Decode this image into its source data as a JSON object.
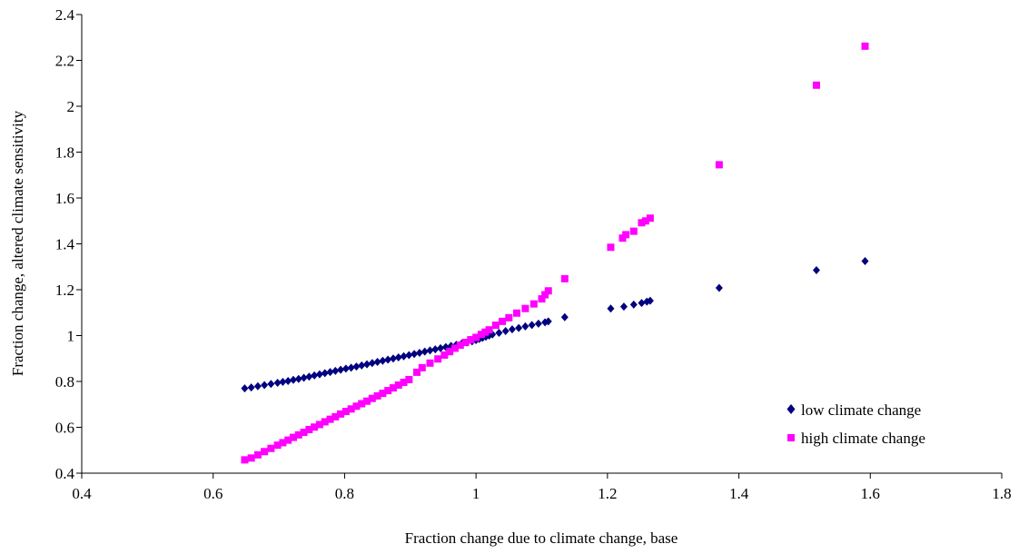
{
  "chart_data": {
    "type": "scatter",
    "xlabel": "Fraction change due to climate change, base",
    "ylabel": "Fraction change, altered climate sensitivity",
    "xlim": [
      0.4,
      1.8
    ],
    "ylim": [
      0.4,
      2.4
    ],
    "xticks": [
      "0.4",
      "0.6",
      "0.8",
      "1",
      "1.2",
      "1.4",
      "1.6",
      "1.8"
    ],
    "yticks": [
      "0.4",
      "0.6",
      "0.8",
      "1",
      "1.2",
      "1.4",
      "1.6",
      "1.8",
      "2",
      "2.2",
      "2.4"
    ],
    "grid": false,
    "legend_position": "bottom-right",
    "series": [
      {
        "name": "low climate change",
        "marker": "diamond",
        "color": "#000080",
        "points": [
          [
            0.648,
            0.77
          ],
          [
            0.658,
            0.774
          ],
          [
            0.668,
            0.779
          ],
          [
            0.678,
            0.784
          ],
          [
            0.688,
            0.789
          ],
          [
            0.698,
            0.794
          ],
          [
            0.706,
            0.798
          ],
          [
            0.714,
            0.802
          ],
          [
            0.722,
            0.807
          ],
          [
            0.73,
            0.811
          ],
          [
            0.738,
            0.816
          ],
          [
            0.746,
            0.821
          ],
          [
            0.754,
            0.826
          ],
          [
            0.762,
            0.831
          ],
          [
            0.77,
            0.836
          ],
          [
            0.778,
            0.841
          ],
          [
            0.786,
            0.846
          ],
          [
            0.794,
            0.851
          ],
          [
            0.802,
            0.856
          ],
          [
            0.81,
            0.86
          ],
          [
            0.818,
            0.865
          ],
          [
            0.826,
            0.87
          ],
          [
            0.834,
            0.875
          ],
          [
            0.842,
            0.88
          ],
          [
            0.85,
            0.885
          ],
          [
            0.858,
            0.89
          ],
          [
            0.866,
            0.895
          ],
          [
            0.874,
            0.9
          ],
          [
            0.882,
            0.905
          ],
          [
            0.89,
            0.91
          ],
          [
            0.898,
            0.915
          ],
          [
            0.906,
            0.92
          ],
          [
            0.914,
            0.925
          ],
          [
            0.922,
            0.93
          ],
          [
            0.93,
            0.935
          ],
          [
            0.938,
            0.94
          ],
          [
            0.946,
            0.945
          ],
          [
            0.954,
            0.95
          ],
          [
            0.962,
            0.955
          ],
          [
            0.97,
            0.96
          ],
          [
            0.978,
            0.965
          ],
          [
            0.986,
            0.97
          ],
          [
            0.994,
            0.975
          ],
          [
            1.0,
            0.98
          ],
          [
            1.005,
            0.985
          ],
          [
            1.01,
            0.99
          ],
          [
            1.015,
            0.995
          ],
          [
            1.02,
            1.0
          ],
          [
            1.025,
            1.005
          ],
          [
            1.035,
            1.012
          ],
          [
            1.045,
            1.02
          ],
          [
            1.055,
            1.027
          ],
          [
            1.065,
            1.033
          ],
          [
            1.075,
            1.04
          ],
          [
            1.085,
            1.046
          ],
          [
            1.095,
            1.052
          ],
          [
            1.105,
            1.058
          ],
          [
            1.11,
            1.062
          ],
          [
            1.135,
            1.08
          ],
          [
            1.205,
            1.118
          ],
          [
            1.225,
            1.126
          ],
          [
            1.24,
            1.135
          ],
          [
            1.252,
            1.142
          ],
          [
            1.26,
            1.148
          ],
          [
            1.265,
            1.152
          ],
          [
            1.37,
            1.208
          ],
          [
            1.518,
            1.285
          ],
          [
            1.592,
            1.325
          ]
        ]
      },
      {
        "name": "high climate change",
        "marker": "square",
        "color": "#FF00FF",
        "points": [
          [
            0.648,
            0.458
          ],
          [
            0.658,
            0.466
          ],
          [
            0.668,
            0.48
          ],
          [
            0.678,
            0.494
          ],
          [
            0.688,
            0.508
          ],
          [
            0.698,
            0.522
          ],
          [
            0.706,
            0.533
          ],
          [
            0.714,
            0.544
          ],
          [
            0.722,
            0.556
          ],
          [
            0.73,
            0.567
          ],
          [
            0.738,
            0.578
          ],
          [
            0.746,
            0.59
          ],
          [
            0.754,
            0.601
          ],
          [
            0.762,
            0.612
          ],
          [
            0.77,
            0.624
          ],
          [
            0.778,
            0.635
          ],
          [
            0.786,
            0.646
          ],
          [
            0.794,
            0.658
          ],
          [
            0.802,
            0.669
          ],
          [
            0.81,
            0.68
          ],
          [
            0.818,
            0.692
          ],
          [
            0.826,
            0.703
          ],
          [
            0.834,
            0.714
          ],
          [
            0.842,
            0.726
          ],
          [
            0.85,
            0.737
          ],
          [
            0.858,
            0.748
          ],
          [
            0.866,
            0.76
          ],
          [
            0.874,
            0.772
          ],
          [
            0.882,
            0.784
          ],
          [
            0.89,
            0.796
          ],
          [
            0.898,
            0.808
          ],
          [
            0.91,
            0.84
          ],
          [
            0.918,
            0.86
          ],
          [
            0.93,
            0.88
          ],
          [
            0.942,
            0.898
          ],
          [
            0.952,
            0.915
          ],
          [
            0.96,
            0.93
          ],
          [
            0.968,
            0.945
          ],
          [
            0.976,
            0.958
          ],
          [
            0.984,
            0.97
          ],
          [
            0.992,
            0.982
          ],
          [
            1.0,
            0.992
          ],
          [
            1.008,
            1.005
          ],
          [
            1.014,
            1.015
          ],
          [
            1.02,
            1.025
          ],
          [
            1.03,
            1.045
          ],
          [
            1.04,
            1.062
          ],
          [
            1.05,
            1.078
          ],
          [
            1.062,
            1.098
          ],
          [
            1.075,
            1.118
          ],
          [
            1.088,
            1.138
          ],
          [
            1.1,
            1.16
          ],
          [
            1.105,
            1.178
          ],
          [
            1.11,
            1.195
          ],
          [
            1.135,
            1.248
          ],
          [
            1.205,
            1.385
          ],
          [
            1.223,
            1.425
          ],
          [
            1.228,
            1.44
          ],
          [
            1.24,
            1.455
          ],
          [
            1.252,
            1.492
          ],
          [
            1.258,
            1.5
          ],
          [
            1.265,
            1.512
          ],
          [
            1.37,
            1.745
          ],
          [
            1.518,
            2.092
          ],
          [
            1.592,
            2.262
          ]
        ]
      }
    ]
  }
}
